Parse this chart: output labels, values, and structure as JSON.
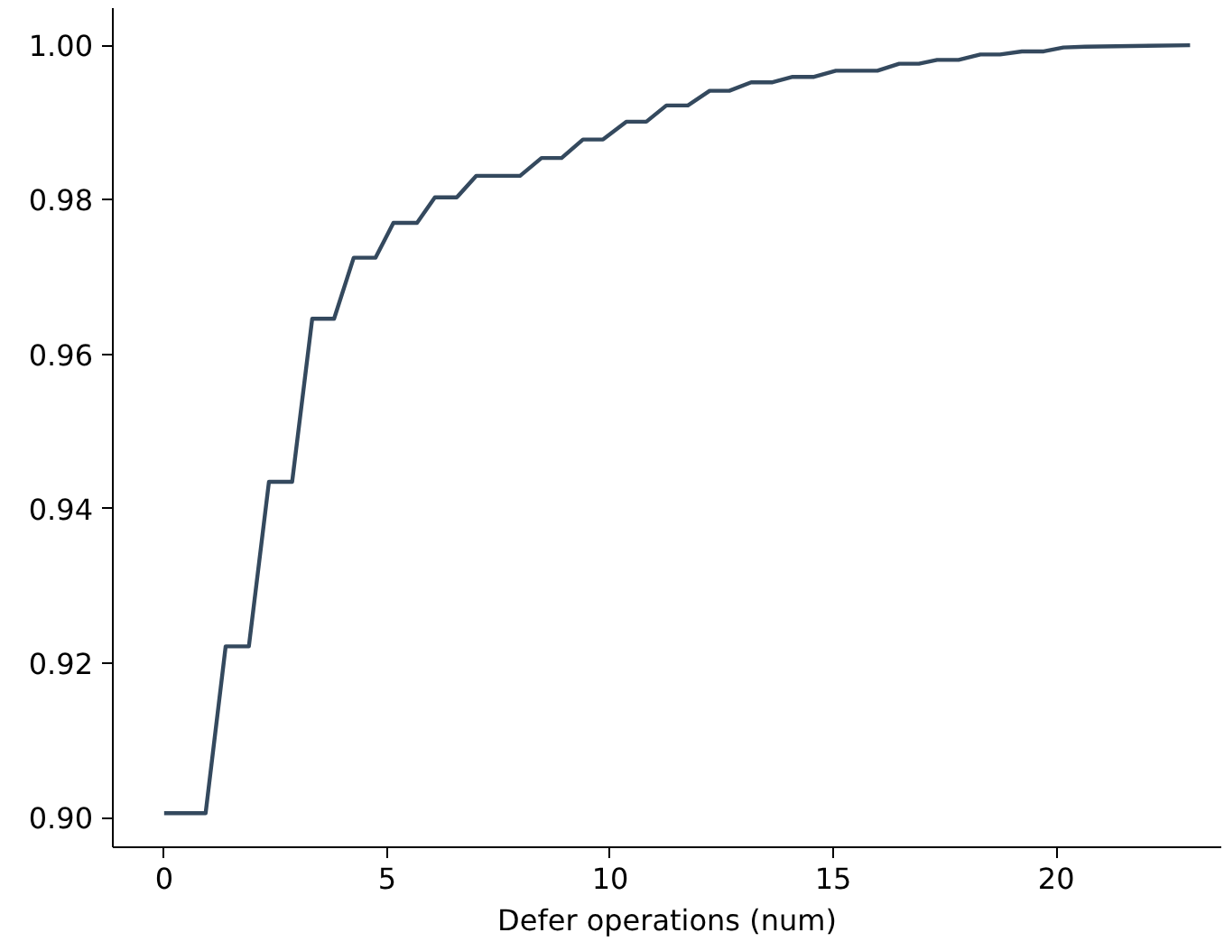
{
  "chart_data": {
    "type": "line",
    "xlabel": "Defer operations (num)",
    "x": [
      0,
      0.93,
      1.38,
      1.9,
      2.35,
      2.87,
      3.32,
      3.81,
      4.25,
      4.74,
      5.14,
      5.67,
      6.07,
      6.56,
      7.0,
      7.98,
      8.46,
      8.91,
      9.39,
      9.84,
      10.36,
      10.81,
      11.26,
      11.74,
      12.23,
      12.67,
      13.16,
      13.64,
      14.09,
      14.57,
      15.06,
      15.99,
      16.48,
      16.92,
      17.33,
      17.81,
      18.3,
      18.74,
      19.23,
      19.72,
      20.16,
      20.65,
      23.0
    ],
    "series": [
      {
        "color": "#34495e",
        "values": [
          0.9006,
          0.9006,
          0.9222,
          0.9222,
          0.9435,
          0.9435,
          0.9646,
          0.9646,
          0.9725,
          0.9725,
          0.977,
          0.977,
          0.9803,
          0.9803,
          0.9831,
          0.9831,
          0.9854,
          0.9854,
          0.9878,
          0.9878,
          0.9901,
          0.9901,
          0.9922,
          0.9922,
          0.9941,
          0.9941,
          0.9952,
          0.9952,
          0.9959,
          0.9959,
          0.9967,
          0.9967,
          0.9976,
          0.9976,
          0.9981,
          0.9981,
          0.9988,
          0.9988,
          0.9992,
          0.9992,
          0.9997,
          0.9998,
          1.0
        ]
      }
    ],
    "xlim": [
      -1.15,
      23.7
    ],
    "ylim": [
      0.8962,
      1.0048
    ],
    "xticks": [
      0,
      5,
      10,
      15,
      20
    ],
    "yticks": [
      {
        "value": 0.9,
        "label": "0.90"
      },
      {
        "value": 0.92,
        "label": "0.92"
      },
      {
        "value": 0.94,
        "label": "0.94"
      },
      {
        "value": 0.96,
        "label": "0.96"
      },
      {
        "value": 0.98,
        "label": "0.98"
      },
      {
        "value": 1.0,
        "label": "1.00"
      }
    ],
    "grid": false,
    "marker": "none",
    "line_style": "solid"
  }
}
